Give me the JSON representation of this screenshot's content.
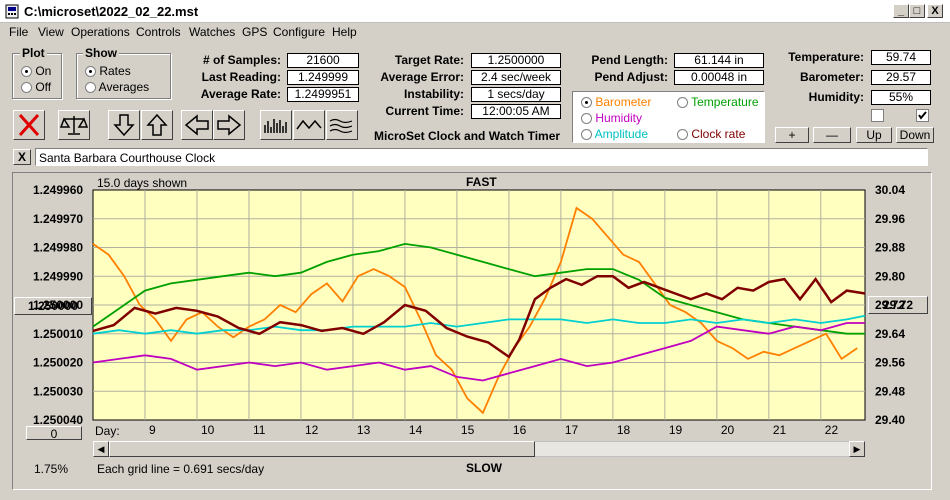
{
  "window": {
    "title": "C:\\microset\\2022_02_22.mst",
    "min": "_",
    "max": "□",
    "close": "X"
  },
  "menu": [
    "File",
    "View",
    "Operations",
    "Controls",
    "Watches",
    "GPS",
    "Configure",
    "Help"
  ],
  "plot": {
    "title": "Plot",
    "on": "On",
    "off": "Off"
  },
  "show": {
    "title": "Show",
    "rates": "Rates",
    "averages": "Averages"
  },
  "stats": {
    "samples_label": "# of Samples:",
    "samples": "21600",
    "last_label": "Last Reading:",
    "last": "1.249999",
    "avg_label": "Average Rate:",
    "avg": "1.2499951",
    "target_label": "Target Rate:",
    "target": "1.2500000",
    "avgerr_label": "Average Error:",
    "avgerr": "2.4 sec/week",
    "instab_label": "Instability:",
    "instab": "1 secs/day",
    "time_label": "Current Time:",
    "time": "12:00:05 AM",
    "pend_len_label": "Pend Length:",
    "pend_len": "61.144 in",
    "pend_adj_label": "Pend Adjust:",
    "pend_adj": "0.00048 in",
    "temp_label": "Temperature:",
    "temp": "59.74",
    "baro_label": "Barometer:",
    "baro": "29.57",
    "hum_label": "Humidity:",
    "hum": "55%"
  },
  "app_title": "MicroSet Clock and Watch Timer",
  "sensors": {
    "barometer": "Barometer",
    "temperature": "Temperature",
    "humidity": "Humidity",
    "amplitude": "Amplitude",
    "clockrate": "Clock rate"
  },
  "adjust_buttons": {
    "plus": "+",
    "minus": "—",
    "up": "Up",
    "down": "Down"
  },
  "clock_name": "Santa Barbara Courthouse Clock",
  "clear_x": "X",
  "colors": {
    "barometer": "#ff8000",
    "temperature": "#00a000",
    "humidity": "#c000c0",
    "amplitude": "#00c0c0",
    "clockrate": "#800000",
    "plotbg": "#ffffc0"
  },
  "chart_data": {
    "type": "line",
    "title": "FAST",
    "bottom_label": "SLOW",
    "days_shown": "15.0 days shown",
    "grid_note": "Each grid line = 0.691 secs/day",
    "left_ticks": [
      "1.249960",
      "1.249970",
      "1.249980",
      "1.249990",
      "1.250000",
      "1.250010",
      "1.250020",
      "1.250030",
      "1.250040"
    ],
    "right_ticks": [
      "30.04",
      "29.96",
      "29.88",
      "29.80",
      "29.72",
      "29.64",
      "29.56",
      "29.48",
      "29.40"
    ],
    "left_center": "1.250000",
    "right_center": "29.72",
    "left_bottom": "0",
    "pct": "1.75%",
    "day_label": "Day:",
    "days": [
      "9",
      "10",
      "11",
      "12",
      "13",
      "14",
      "15",
      "16",
      "17",
      "18",
      "19",
      "20",
      "21",
      "22"
    ],
    "x_range": [
      8.0,
      22.85
    ],
    "y_left_range": [
      1.24996,
      1.25004
    ],
    "y_right_range": [
      29.4,
      30.04
    ],
    "series": [
      {
        "name": "Barometer",
        "axis": "right",
        "color": "#ff8000",
        "x": [
          8.0,
          8.3,
          8.6,
          8.9,
          9.2,
          9.5,
          9.8,
          10.1,
          10.4,
          10.7,
          11.0,
          11.3,
          11.6,
          11.9,
          12.2,
          12.5,
          12.8,
          13.1,
          13.4,
          13.7,
          14.0,
          14.3,
          14.6,
          14.9,
          15.2,
          15.5,
          15.8,
          16.1,
          16.4,
          16.7,
          17.0,
          17.3,
          17.6,
          17.9,
          18.2,
          18.5,
          18.8,
          19.1,
          19.4,
          19.7,
          20.0,
          20.3,
          20.6,
          20.9,
          21.2,
          21.5,
          21.8,
          22.1,
          22.4,
          22.7
        ],
        "y": [
          29.89,
          29.86,
          29.8,
          29.72,
          29.68,
          29.62,
          29.68,
          29.7,
          29.66,
          29.63,
          29.66,
          29.68,
          29.72,
          29.7,
          29.75,
          29.78,
          29.73,
          29.8,
          29.82,
          29.8,
          29.77,
          29.68,
          29.58,
          29.54,
          29.46,
          29.42,
          29.52,
          29.6,
          29.66,
          29.74,
          29.84,
          29.99,
          29.96,
          29.91,
          29.86,
          29.84,
          29.78,
          29.72,
          29.7,
          29.67,
          29.62,
          29.6,
          29.57,
          29.59,
          29.58,
          29.6,
          29.62,
          29.64,
          29.57,
          29.6
        ]
      },
      {
        "name": "Temperature",
        "axis": "right",
        "color": "#00a000",
        "x": [
          8.0,
          8.5,
          9.0,
          9.5,
          10.0,
          10.5,
          11.0,
          11.5,
          12.0,
          12.5,
          13.0,
          13.5,
          14.0,
          14.5,
          15.0,
          15.5,
          16.0,
          16.5,
          17.0,
          17.5,
          18.0,
          18.5,
          19.0,
          19.5,
          20.0,
          20.5,
          21.0,
          21.5,
          22.0,
          22.5,
          22.85
        ],
        "y": [
          29.66,
          29.71,
          29.76,
          29.78,
          29.79,
          29.8,
          29.81,
          29.8,
          29.81,
          29.84,
          29.86,
          29.87,
          29.89,
          29.88,
          29.86,
          29.84,
          29.82,
          29.8,
          29.81,
          29.82,
          29.82,
          29.79,
          29.74,
          29.72,
          29.7,
          29.68,
          29.67,
          29.66,
          29.65,
          29.64,
          29.64
        ]
      },
      {
        "name": "Humidity",
        "axis": "right",
        "color": "#c000c0",
        "x": [
          8.0,
          8.5,
          9.0,
          9.5,
          10.0,
          10.5,
          11.0,
          11.5,
          12.0,
          12.5,
          13.0,
          13.5,
          14.0,
          14.5,
          15.0,
          15.5,
          16.0,
          16.5,
          17.0,
          17.5,
          18.0,
          18.5,
          19.0,
          19.5,
          20.0,
          20.5,
          21.0,
          21.5,
          22.0,
          22.5,
          22.85
        ],
        "y": [
          29.56,
          29.57,
          29.58,
          29.57,
          29.54,
          29.55,
          29.56,
          29.55,
          29.56,
          29.54,
          29.55,
          29.56,
          29.54,
          29.55,
          29.52,
          29.51,
          29.53,
          29.55,
          29.57,
          29.55,
          29.56,
          29.58,
          29.6,
          29.62,
          29.66,
          29.65,
          29.64,
          29.66,
          29.65,
          29.67,
          29.67
        ]
      },
      {
        "name": "Amplitude",
        "axis": "right",
        "color": "#00d0d0",
        "x": [
          8.0,
          8.5,
          9.0,
          9.5,
          10.0,
          10.5,
          11.0,
          11.5,
          12.0,
          12.5,
          13.0,
          13.5,
          14.0,
          14.5,
          15.0,
          15.5,
          16.0,
          16.5,
          17.0,
          17.5,
          18.0,
          18.5,
          19.0,
          19.5,
          20.0,
          20.5,
          21.0,
          21.5,
          22.0,
          22.5,
          22.85
        ],
        "y": [
          29.64,
          29.65,
          29.64,
          29.65,
          29.64,
          29.65,
          29.65,
          29.66,
          29.65,
          29.65,
          29.66,
          29.66,
          29.66,
          29.67,
          29.66,
          29.67,
          29.68,
          29.68,
          29.68,
          29.67,
          29.68,
          29.67,
          29.67,
          29.68,
          29.67,
          29.68,
          29.67,
          29.68,
          29.67,
          29.68,
          29.69
        ]
      },
      {
        "name": "Clock rate",
        "axis": "left",
        "color": "#800000",
        "x": [
          8.0,
          8.4,
          8.8,
          9.2,
          9.6,
          10.0,
          10.4,
          10.8,
          11.2,
          11.6,
          12.0,
          12.4,
          12.8,
          13.2,
          13.6,
          14.0,
          14.4,
          14.8,
          15.2,
          15.6,
          16.0,
          16.2,
          16.5,
          16.8,
          17.1,
          17.4,
          17.7,
          18.0,
          18.3,
          18.6,
          18.9,
          19.2,
          19.5,
          19.8,
          20.1,
          20.4,
          20.7,
          21.0,
          21.3,
          21.6,
          21.9,
          22.2,
          22.5,
          22.85
        ],
        "y": [
          1.250009,
          1.250007,
          1.250001,
          1.250003,
          1.250001,
          1.250002,
          1.250004,
          1.250008,
          1.25001,
          1.250006,
          1.250007,
          1.250009,
          1.250008,
          1.25001,
          1.250006,
          1.25,
          1.250002,
          1.250008,
          1.250011,
          1.250013,
          1.250018,
          1.250012,
          1.249998,
          1.249994,
          1.249991,
          1.249993,
          1.24999,
          1.24999,
          1.249994,
          1.249992,
          1.249994,
          1.249996,
          1.249998,
          1.249996,
          1.249998,
          1.249994,
          1.249995,
          1.249992,
          1.249991,
          1.249998,
          1.249991,
          1.249999,
          1.249995,
          1.249996
        ]
      }
    ]
  }
}
